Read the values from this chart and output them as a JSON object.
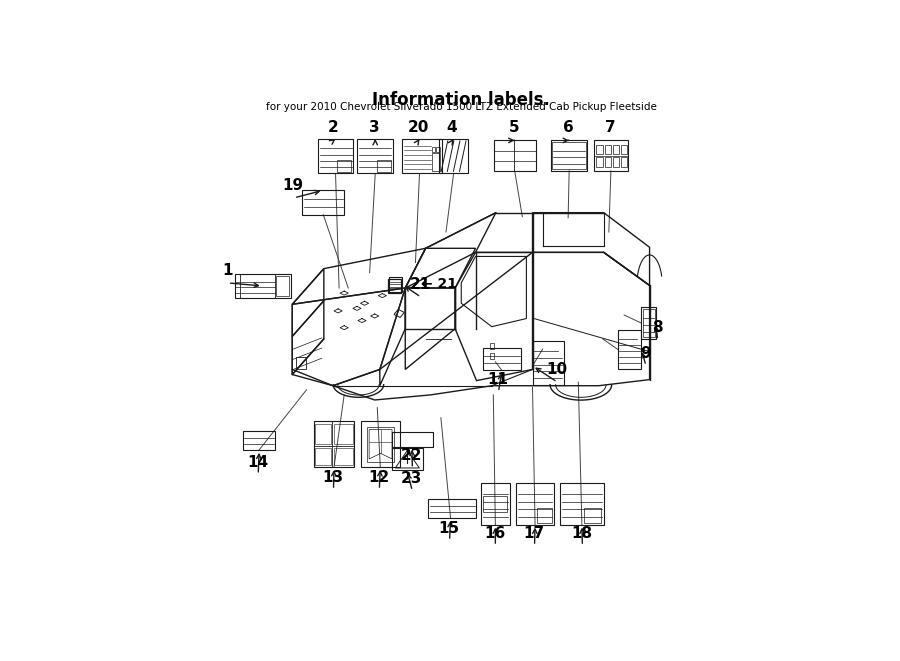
{
  "title": "for your 2010 Chevrolet Silverado 1500 LTZ Extended Cab Pickup Fleetside",
  "header": "Information labels.",
  "bg_color": "#ffffff",
  "lc": "#1a1a1a",
  "labels": {
    "1": {
      "bx": 0.055,
      "by": 0.57,
      "bw": 0.11,
      "bh": 0.048,
      "type": "wide_label",
      "nx": 0.04,
      "ny": 0.625,
      "arx": 0.11,
      "ary": 0.594
    },
    "2": {
      "bx": 0.218,
      "by": 0.815,
      "bw": 0.07,
      "bh": 0.068,
      "type": "lined_sq",
      "nx": 0.248,
      "ny": 0.905,
      "arx": 0.253,
      "ary": 0.883
    },
    "3": {
      "bx": 0.296,
      "by": 0.815,
      "bw": 0.07,
      "bh": 0.068,
      "type": "lined_sq",
      "nx": 0.33,
      "ny": 0.905,
      "arx": 0.331,
      "ary": 0.883
    },
    "4": {
      "bx": 0.456,
      "by": 0.815,
      "bw": 0.058,
      "bh": 0.068,
      "type": "slash_sq",
      "nx": 0.482,
      "ny": 0.905,
      "arx": 0.485,
      "ary": 0.883
    },
    "5": {
      "bx": 0.564,
      "by": 0.82,
      "bw": 0.082,
      "bh": 0.06,
      "type": "grid_sq",
      "nx": 0.603,
      "ny": 0.905,
      "arx": 0.605,
      "ary": 0.88
    },
    "6": {
      "bx": 0.676,
      "by": 0.82,
      "bw": 0.072,
      "bh": 0.06,
      "type": "lined_sq2",
      "nx": 0.71,
      "ny": 0.905,
      "arx": 0.712,
      "ary": 0.88
    },
    "7": {
      "bx": 0.76,
      "by": 0.82,
      "bw": 0.068,
      "bh": 0.06,
      "type": "fuse_sq",
      "nx": 0.793,
      "ny": 0.905,
      "arx": 0.794,
      "ary": 0.88
    },
    "8": {
      "bx": 0.854,
      "by": 0.49,
      "bw": 0.028,
      "bh": 0.062,
      "type": "narrow_tall",
      "nx": 0.885,
      "ny": 0.512,
      "arx": 0.882,
      "ary": 0.521
    },
    "9": {
      "bx": 0.808,
      "by": 0.43,
      "bw": 0.046,
      "bh": 0.078,
      "type": "text_tall",
      "nx": 0.862,
      "ny": 0.462,
      "arx": 0.854,
      "ary": 0.469
    },
    "10": {
      "bx": 0.64,
      "by": 0.4,
      "bw": 0.062,
      "bh": 0.085,
      "type": "text_tall",
      "nx": 0.688,
      "ny": 0.43,
      "arx": 0.64,
      "ary": 0.437
    },
    "11": {
      "bx": 0.543,
      "by": 0.428,
      "bw": 0.075,
      "bh": 0.044,
      "type": "lined_wide",
      "nx": 0.572,
      "ny": 0.41,
      "arx": 0.58,
      "ary": 0.428
    },
    "12": {
      "bx": 0.304,
      "by": 0.238,
      "bw": 0.075,
      "bh": 0.09,
      "type": "map_sq",
      "nx": 0.338,
      "ny": 0.218,
      "arx": 0.341,
      "ary": 0.238
    },
    "13": {
      "bx": 0.21,
      "by": 0.238,
      "bw": 0.08,
      "bh": 0.09,
      "type": "grid_sq2",
      "nx": 0.248,
      "ny": 0.218,
      "arx": 0.25,
      "ary": 0.238
    },
    "14": {
      "bx": 0.072,
      "by": 0.272,
      "bw": 0.062,
      "bh": 0.038,
      "type": "lined_wide",
      "nx": 0.1,
      "ny": 0.248,
      "arx": 0.103,
      "ary": 0.272
    },
    "15": {
      "bx": 0.435,
      "by": 0.138,
      "bw": 0.094,
      "bh": 0.038,
      "type": "lined_wide",
      "nx": 0.476,
      "ny": 0.118,
      "arx": 0.479,
      "ary": 0.138
    },
    "16": {
      "bx": 0.539,
      "by": 0.125,
      "bw": 0.056,
      "bh": 0.082,
      "type": "text_sq2",
      "nx": 0.566,
      "ny": 0.108,
      "arx": 0.567,
      "ary": 0.125
    },
    "17": {
      "bx": 0.607,
      "by": 0.125,
      "bw": 0.076,
      "bh": 0.082,
      "type": "lined_sq",
      "nx": 0.643,
      "ny": 0.108,
      "arx": 0.645,
      "ary": 0.125
    },
    "18": {
      "bx": 0.694,
      "by": 0.125,
      "bw": 0.086,
      "bh": 0.082,
      "type": "lined_sq",
      "nx": 0.737,
      "ny": 0.108,
      "arx": 0.737,
      "ary": 0.125
    },
    "19": {
      "bx": 0.188,
      "by": 0.734,
      "bw": 0.082,
      "bh": 0.048,
      "type": "lined_wide",
      "nx": 0.17,
      "ny": 0.792,
      "arx": 0.229,
      "ary": 0.782
    },
    "20": {
      "bx": 0.384,
      "by": 0.815,
      "bw": 0.078,
      "bh": 0.068,
      "type": "text_lined_sq",
      "nx": 0.415,
      "ny": 0.905,
      "arx": 0.418,
      "ary": 0.883
    },
    "21": {
      "bx": 0.358,
      "by": 0.582,
      "bw": 0.026,
      "bh": 0.03,
      "type": "small_fuse",
      "nx": 0.42,
      "ny": 0.597,
      "arx": 0.384,
      "ary": 0.597
    },
    "22": {
      "bx": 0.363,
      "by": 0.278,
      "bw": 0.082,
      "bh": 0.03,
      "type": "bar_plain",
      "nx": 0.403,
      "ny": 0.26,
      "arx": 0.403,
      "ary": 0.278
    },
    "23": {
      "bx": 0.363,
      "by": 0.232,
      "bw": 0.062,
      "bh": 0.044,
      "type": "warn_tri",
      "nx": 0.403,
      "ny": 0.216,
      "arx": 0.393,
      "ary": 0.232
    }
  },
  "connect_lines": [
    [
      0.253,
      0.815,
      0.26,
      0.59
    ],
    [
      0.331,
      0.815,
      0.32,
      0.62
    ],
    [
      0.418,
      0.815,
      0.41,
      0.64
    ],
    [
      0.485,
      0.815,
      0.47,
      0.7
    ],
    [
      0.605,
      0.82,
      0.62,
      0.73
    ],
    [
      0.712,
      0.82,
      0.71,
      0.728
    ],
    [
      0.794,
      0.82,
      0.79,
      0.7
    ],
    [
      0.854,
      0.521,
      0.82,
      0.537
    ],
    [
      0.808,
      0.469,
      0.778,
      0.49
    ],
    [
      0.64,
      0.437,
      0.66,
      0.47
    ],
    [
      0.58,
      0.428,
      0.567,
      0.445
    ],
    [
      0.341,
      0.238,
      0.335,
      0.355
    ],
    [
      0.25,
      0.238,
      0.27,
      0.38
    ],
    [
      0.103,
      0.272,
      0.196,
      0.39
    ],
    [
      0.479,
      0.138,
      0.46,
      0.335
    ],
    [
      0.567,
      0.125,
      0.563,
      0.38
    ],
    [
      0.645,
      0.125,
      0.64,
      0.395
    ],
    [
      0.737,
      0.125,
      0.73,
      0.405
    ],
    [
      0.229,
      0.734,
      0.278,
      0.59
    ]
  ]
}
